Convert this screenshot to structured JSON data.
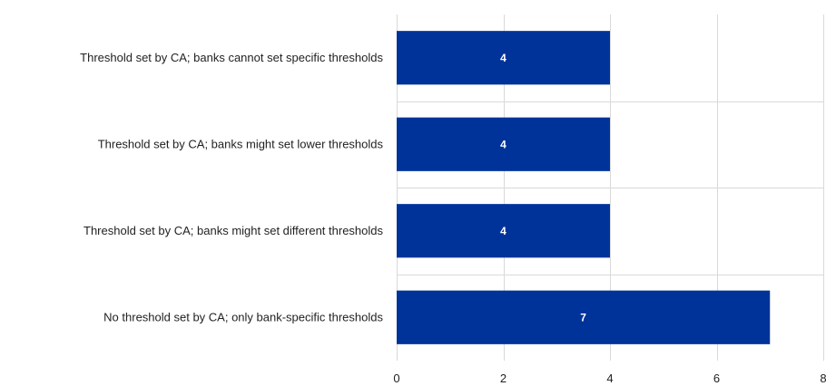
{
  "chart_data": {
    "type": "bar",
    "orientation": "horizontal",
    "categories": [
      "Threshold set by CA; banks cannot set specific thresholds",
      "Threshold set by CA; banks might set lower thresholds",
      "Threshold set by CA; banks might set different thresholds",
      "No threshold set by CA; only bank-specific thresholds"
    ],
    "values": [
      4,
      4,
      4,
      7
    ],
    "data_labels": [
      "4",
      "4",
      "4",
      "7"
    ],
    "xlim": [
      0,
      8
    ],
    "x_ticks": [
      0,
      2,
      4,
      6,
      8
    ],
    "x_tick_labels": [
      "0",
      "2",
      "4",
      "6",
      "8"
    ],
    "title": "",
    "xlabel": "",
    "ylabel": "",
    "grid": true,
    "legend": "none",
    "bar_color": "#003399"
  }
}
